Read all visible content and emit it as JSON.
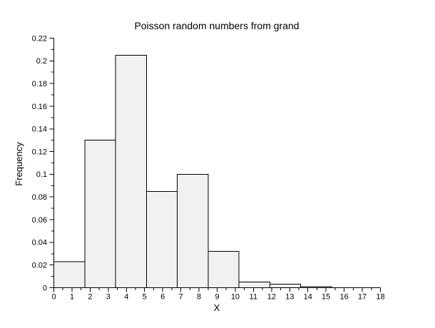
{
  "figure": {
    "background": "#ffffff"
  },
  "chart_data": {
    "type": "bar",
    "subtype": "histogram",
    "title": "Poisson random numbers from grand",
    "xlabel": "X",
    "ylabel": "Frequency",
    "xlim": [
      0,
      18
    ],
    "ylim": [
      0,
      0.22
    ],
    "grid": false,
    "legend": "none",
    "bin_width": 1.7,
    "bin_edges": [
      0,
      1.7,
      3.4,
      5.1,
      6.8,
      8.5,
      10.2,
      11.9,
      13.6,
      15.3
    ],
    "frequencies": [
      0.023,
      0.13,
      0.205,
      0.085,
      0.1,
      0.032,
      0.005,
      0.003,
      0.001
    ],
    "x_tick_values": [
      0,
      1,
      2,
      3,
      4,
      5,
      6,
      7,
      8,
      9,
      10,
      11,
      12,
      13,
      14,
      15,
      16,
      17,
      18
    ],
    "x_tick_labels": [
      "0",
      "1",
      "2",
      "3",
      "4",
      "5",
      "6",
      "7",
      "8",
      "9",
      "10",
      "11",
      "12",
      "13",
      "14",
      "15",
      "16",
      "17",
      "18"
    ],
    "x_minor_tick_step": 0.5,
    "y_tick_values": [
      0,
      0.02,
      0.04,
      0.06,
      0.08,
      0.1,
      0.12,
      0.14,
      0.16,
      0.18,
      0.2,
      0.22
    ],
    "y_tick_labels": [
      "0",
      "0.02",
      "0.04",
      "0.06",
      "0.08",
      "0.1",
      "0.12",
      "0.14",
      "0.16",
      "0.18",
      "0.2",
      "0.22"
    ],
    "y_minor_tick_step": 0.01,
    "style": {
      "bar_fill": "#f1f1f1",
      "bar_stroke": "#000000",
      "axis_color": "#000000",
      "text_color": "#000000"
    }
  }
}
